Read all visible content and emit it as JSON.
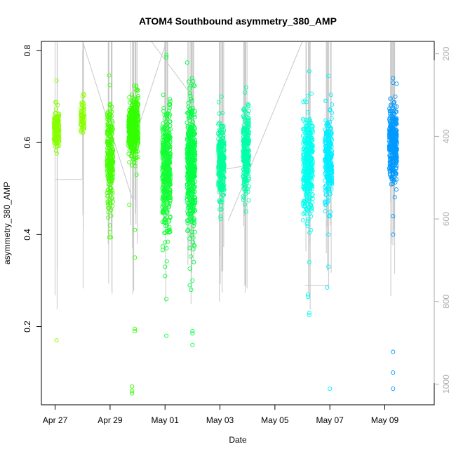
{
  "chart_data": {
    "type": "scatter",
    "title": "ATOM4 Southbound asymmetry_380_AMP",
    "xlabel": "Date",
    "ylabel": "asymmetry_380_AMP",
    "x_ticks": [
      "Apr 27",
      "Apr 29",
      "May 01",
      "May 03",
      "May 05",
      "May 07",
      "May 09"
    ],
    "y_ticks": [
      "0.2",
      "0.4",
      "0.6",
      "0.8"
    ],
    "y_right_ticks": [
      "200",
      "400",
      "600",
      "800",
      "1000"
    ],
    "x_range_days": [
      -0.5,
      13.8
    ],
    "ylim": [
      0.03,
      0.82
    ],
    "y_right_lim": [
      1050,
      170
    ],
    "grid": false,
    "legend": "none",
    "line_color": "#c8c8c8",
    "clusters": [
      {
        "day": 0.05,
        "width": 0.2,
        "mean": 0.63,
        "sd": 0.022,
        "n": 160,
        "color": "#88ff00",
        "outliers": [
          [
            0.05,
            0.735
          ],
          [
            0.05,
            0.17
          ]
        ]
      },
      {
        "day": 1.0,
        "width": 0.14,
        "mean": 0.655,
        "sd": 0.016,
        "n": 60,
        "color": "#88ff00",
        "outliers": [
          [
            1.0,
            0.7
          ]
        ]
      },
      {
        "day": 2.0,
        "width": 0.22,
        "mean": 0.57,
        "sd": 0.055,
        "n": 240,
        "color": "#44ff00",
        "outliers": [
          [
            2.0,
            0.725
          ],
          [
            2.0,
            0.405
          ],
          [
            2.0,
            0.42
          ]
        ]
      },
      {
        "day": 2.85,
        "width": 0.36,
        "mean": 0.63,
        "sd": 0.035,
        "n": 380,
        "color": "#33ff00",
        "outliers": [
          [
            2.8,
            0.07
          ],
          [
            2.8,
            0.06
          ],
          [
            2.8,
            0.055
          ],
          [
            2.9,
            0.195
          ],
          [
            2.9,
            0.19
          ],
          [
            2.9,
            0.35
          ],
          [
            2.9,
            0.41
          ],
          [
            2.7,
            0.465
          ]
        ]
      },
      {
        "day": 4.05,
        "width": 0.3,
        "mean": 0.54,
        "sd": 0.07,
        "n": 380,
        "color": "#11ff33",
        "outliers": [
          [
            4.05,
            0.79
          ],
          [
            4.05,
            0.785
          ],
          [
            4.05,
            0.18
          ],
          [
            4.05,
            0.26
          ],
          [
            4.0,
            0.31
          ],
          [
            4.0,
            0.33
          ]
        ]
      },
      {
        "day": 4.95,
        "width": 0.3,
        "mean": 0.55,
        "sd": 0.07,
        "n": 420,
        "color": "#00ff44",
        "outliers": [
          [
            5.0,
            0.16
          ],
          [
            5.0,
            0.19
          ],
          [
            5.0,
            0.185
          ],
          [
            4.95,
            0.28
          ],
          [
            5.0,
            0.3
          ],
          [
            4.9,
            0.29
          ]
        ]
      },
      {
        "day": 6.05,
        "width": 0.22,
        "mean": 0.56,
        "sd": 0.04,
        "n": 260,
        "color": "#00ff99",
        "outliers": [
          [
            6.05,
            0.7
          ],
          [
            6.05,
            0.455
          ]
        ]
      },
      {
        "day": 6.95,
        "width": 0.22,
        "mean": 0.58,
        "sd": 0.045,
        "n": 260,
        "color": "#00ffaa",
        "outliers": [
          [
            6.95,
            0.72
          ],
          [
            6.95,
            0.45
          ]
        ]
      },
      {
        "day": 9.2,
        "width": 0.36,
        "mean": 0.55,
        "sd": 0.055,
        "n": 380,
        "color": "#00ffee",
        "outliers": [
          [
            9.25,
            0.755
          ],
          [
            9.25,
            0.755
          ],
          [
            9.2,
            0.265
          ],
          [
            9.25,
            0.23
          ],
          [
            9.25,
            0.225
          ],
          [
            9.25,
            0.34
          ],
          [
            9.2,
            0.27
          ]
        ]
      },
      {
        "day": 9.95,
        "width": 0.26,
        "mean": 0.56,
        "sd": 0.045,
        "n": 280,
        "color": "#00eeff",
        "outliers": [
          [
            9.95,
            0.745
          ],
          [
            9.9,
            0.285
          ],
          [
            10.0,
            0.065
          ],
          [
            9.95,
            0.33
          ],
          [
            9.95,
            0.4
          ]
        ]
      },
      {
        "day": 12.3,
        "width": 0.28,
        "mean": 0.6,
        "sd": 0.04,
        "n": 340,
        "color": "#0099ff",
        "outliers": [
          [
            12.3,
            0.74
          ],
          [
            12.3,
            0.73
          ],
          [
            12.3,
            0.145
          ],
          [
            12.3,
            0.1
          ],
          [
            12.3,
            0.065
          ],
          [
            12.3,
            0.4
          ],
          [
            12.3,
            0.44
          ]
        ]
      }
    ]
  }
}
